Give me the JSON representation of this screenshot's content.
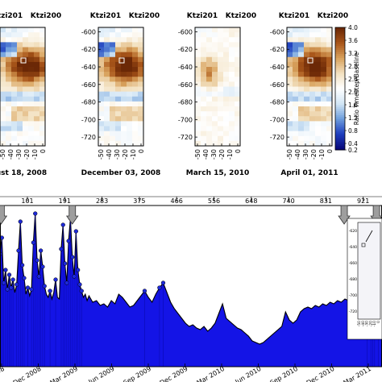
{
  "chart_data": [
    {
      "type": "heatmap",
      "panel_labels": [
        "Ktzi201",
        "Ktzi200"
      ],
      "y_ticks": [
        -600,
        -620,
        -640,
        -660,
        -680,
        -700,
        -720
      ],
      "x_ticks": [
        "-50",
        "-40",
        "-30",
        "-20",
        "-10",
        "0"
      ],
      "ylim": [
        -730,
        -595
      ],
      "xlim": [
        -50,
        0
      ],
      "panels": [
        {
          "date": "ugust 18, 2008",
          "show_yticks": false,
          "marker": true
        },
        {
          "date": "December 03, 2008",
          "show_yticks": true,
          "marker": true
        },
        {
          "date": "March 15, 2010",
          "show_yticks": true,
          "marker": false
        },
        {
          "date": "April 01, 2011",
          "show_yticks": true,
          "marker": true
        }
      ],
      "colorbar": {
        "label": "Ratio Timestep/Baseline",
        "ticks": [
          "4.0",
          "3.6",
          "3.2",
          "2.8",
          "2.4",
          "2.0",
          "1.6",
          "1.2",
          "0.8",
          "0.4",
          "0.2"
        ],
        "range": [
          0.2,
          4.0
        ],
        "colors": [
          "#08087a",
          "#1e3fbf",
          "#6f9fdc",
          "#d3e6f5",
          "#ffffff",
          "#f3e2c2",
          "#d9a35e",
          "#a9561a",
          "#6b2806"
        ]
      }
    },
    {
      "type": "area",
      "color": "#1414e6",
      "top_ticks": [
        "101",
        "191",
        "283",
        "375",
        "466",
        "556",
        "648",
        "740",
        "831",
        "921"
      ],
      "bottom_ticks": [
        "08",
        "Dec 2008",
        "Mar 2009",
        "Jun 2009",
        "Sep 2009",
        "Dec 2009",
        "Mar 2010",
        "Jun 2010",
        "Sep 2010",
        "Dec 2010",
        "Mar 2011"
      ],
      "arrow_positions": [
        0.3,
        19.5,
        92.8,
        101.5
      ],
      "x_range": [
        0,
        103
      ],
      "y_range": [
        0,
        100
      ],
      "series": [
        {
          "x": 0,
          "y": 70
        },
        {
          "x": 0.5,
          "y": 80
        },
        {
          "x": 1,
          "y": 52
        },
        {
          "x": 1.5,
          "y": 60
        },
        {
          "x": 2,
          "y": 48
        },
        {
          "x": 2.5,
          "y": 57
        },
        {
          "x": 3,
          "y": 49
        },
        {
          "x": 3.5,
          "y": 54
        },
        {
          "x": 4,
          "y": 46
        },
        {
          "x": 4.5,
          "y": 51
        },
        {
          "x": 5,
          "y": 72
        },
        {
          "x": 5.5,
          "y": 90
        },
        {
          "x": 6,
          "y": 63
        },
        {
          "x": 6.5,
          "y": 55
        },
        {
          "x": 7,
          "y": 45
        },
        {
          "x": 7.5,
          "y": 49
        },
        {
          "x": 8,
          "y": 44
        },
        {
          "x": 8.5,
          "y": 48
        },
        {
          "x": 9,
          "y": 77
        },
        {
          "x": 9.5,
          "y": 95
        },
        {
          "x": 10,
          "y": 66
        },
        {
          "x": 10.5,
          "y": 56
        },
        {
          "x": 11,
          "y": 72
        },
        {
          "x": 11.5,
          "y": 62
        },
        {
          "x": 12,
          "y": 50
        },
        {
          "x": 12.5,
          "y": 45
        },
        {
          "x": 13,
          "y": 43
        },
        {
          "x": 13.5,
          "y": 47
        },
        {
          "x": 14,
          "y": 42
        },
        {
          "x": 14.5,
          "y": 46
        },
        {
          "x": 15,
          "y": 54
        },
        {
          "x": 15.5,
          "y": 43
        },
        {
          "x": 16,
          "y": 42
        },
        {
          "x": 16.5,
          "y": 73
        },
        {
          "x": 17,
          "y": 88
        },
        {
          "x": 17.5,
          "y": 64
        },
        {
          "x": 18,
          "y": 52
        },
        {
          "x": 18.5,
          "y": 78
        },
        {
          "x": 19,
          "y": 92
        },
        {
          "x": 19.5,
          "y": 68
        },
        {
          "x": 20,
          "y": 56
        },
        {
          "x": 20.5,
          "y": 84
        },
        {
          "x": 21,
          "y": 60
        },
        {
          "x": 21.5,
          "y": 51
        },
        {
          "x": 22,
          "y": 47
        },
        {
          "x": 22.5,
          "y": 43
        },
        {
          "x": 23,
          "y": 45
        },
        {
          "x": 23.5,
          "y": 41
        },
        {
          "x": 24,
          "y": 44
        },
        {
          "x": 25,
          "y": 40
        },
        {
          "x": 26,
          "y": 41
        },
        {
          "x": 27,
          "y": 38
        },
        {
          "x": 28,
          "y": 39
        },
        {
          "x": 29,
          "y": 37
        },
        {
          "x": 30,
          "y": 41
        },
        {
          "x": 31,
          "y": 39
        },
        {
          "x": 32,
          "y": 45
        },
        {
          "x": 33,
          "y": 43
        },
        {
          "x": 34,
          "y": 40
        },
        {
          "x": 35,
          "y": 37
        },
        {
          "x": 36,
          "y": 38
        },
        {
          "x": 37,
          "y": 41
        },
        {
          "x": 38,
          "y": 44
        },
        {
          "x": 39,
          "y": 47
        },
        {
          "x": 40,
          "y": 43
        },
        {
          "x": 41,
          "y": 40
        },
        {
          "x": 42,
          "y": 45
        },
        {
          "x": 43,
          "y": 49
        },
        {
          "x": 44,
          "y": 52
        },
        {
          "x": 45,
          "y": 46
        },
        {
          "x": 46,
          "y": 40
        },
        {
          "x": 47,
          "y": 36
        },
        {
          "x": 48,
          "y": 33
        },
        {
          "x": 49,
          "y": 30
        },
        {
          "x": 50,
          "y": 27
        },
        {
          "x": 51,
          "y": 25
        },
        {
          "x": 52,
          "y": 26
        },
        {
          "x": 53,
          "y": 24
        },
        {
          "x": 54,
          "y": 23
        },
        {
          "x": 55,
          "y": 25
        },
        {
          "x": 56,
          "y": 22
        },
        {
          "x": 57,
          "y": 24
        },
        {
          "x": 58,
          "y": 27
        },
        {
          "x": 59,
          "y": 33
        },
        {
          "x": 60,
          "y": 39
        },
        {
          "x": 61,
          "y": 30
        },
        {
          "x": 62,
          "y": 28
        },
        {
          "x": 63,
          "y": 26
        },
        {
          "x": 64,
          "y": 24
        },
        {
          "x": 65,
          "y": 23
        },
        {
          "x": 66,
          "y": 21
        },
        {
          "x": 67,
          "y": 19
        },
        {
          "x": 68,
          "y": 16
        },
        {
          "x": 69,
          "y": 15
        },
        {
          "x": 70,
          "y": 14
        },
        {
          "x": 71,
          "y": 15
        },
        {
          "x": 72,
          "y": 17
        },
        {
          "x": 73,
          "y": 19
        },
        {
          "x": 74,
          "y": 21
        },
        {
          "x": 75,
          "y": 23
        },
        {
          "x": 76,
          "y": 25
        },
        {
          "x": 77,
          "y": 34
        },
        {
          "x": 78,
          "y": 29
        },
        {
          "x": 79,
          "y": 27
        },
        {
          "x": 80,
          "y": 29
        },
        {
          "x": 81,
          "y": 34
        },
        {
          "x": 82,
          "y": 36
        },
        {
          "x": 83,
          "y": 37
        },
        {
          "x": 84,
          "y": 36
        },
        {
          "x": 85,
          "y": 38
        },
        {
          "x": 86,
          "y": 37
        },
        {
          "x": 87,
          "y": 39
        },
        {
          "x": 88,
          "y": 38
        },
        {
          "x": 89,
          "y": 40
        },
        {
          "x": 90,
          "y": 39
        },
        {
          "x": 91,
          "y": 41
        },
        {
          "x": 92,
          "y": 40
        },
        {
          "x": 93,
          "y": 42
        },
        {
          "x": 94,
          "y": 41
        },
        {
          "x": 95,
          "y": 43
        },
        {
          "x": 96,
          "y": 42
        },
        {
          "x": 97,
          "y": 45
        },
        {
          "x": 98,
          "y": 44
        },
        {
          "x": 99,
          "y": 50
        },
        {
          "x": 100,
          "y": 56
        },
        {
          "x": 100.5,
          "y": 48
        },
        {
          "x": 101,
          "y": 52
        },
        {
          "x": 102,
          "y": 47
        },
        {
          "x": 103,
          "y": 49
        }
      ],
      "inset": {
        "y_ticks": [
          "-620",
          "-640",
          "-660",
          "-680",
          "-700",
          "-720"
        ],
        "x_ticks": [
          "-50",
          "-40",
          "-30",
          "-20",
          "-10",
          "0"
        ]
      }
    }
  ]
}
